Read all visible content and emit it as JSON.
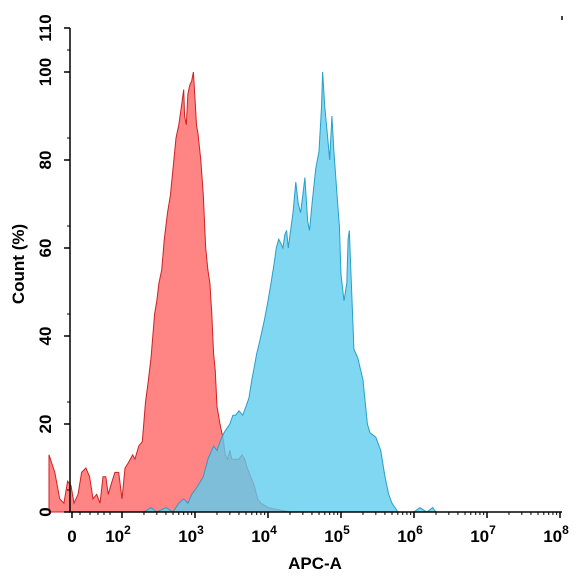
{
  "chart_data": {
    "type": "area",
    "title": "",
    "xlabel": "APC-A",
    "ylabel": "Count (%)",
    "x_scale": "log",
    "x_ticks": [
      {
        "value": 0,
        "base": "0",
        "exp": ""
      },
      {
        "value": 100,
        "base": "10",
        "exp": "2"
      },
      {
        "value": 1000,
        "base": "10",
        "exp": "3"
      },
      {
        "value": 10000,
        "base": "10",
        "exp": "4"
      },
      {
        "value": 100000,
        "base": "10",
        "exp": "5"
      },
      {
        "value": 1000000,
        "base": "10",
        "exp": "6"
      },
      {
        "value": 10000000,
        "base": "10",
        "exp": "7"
      },
      {
        "value": 100000000,
        "base": "10",
        "exp": "8"
      }
    ],
    "y_ticks": [
      "0",
      "20",
      "40",
      "60",
      "80",
      "100",
      "110"
    ],
    "ylim": [
      0,
      110
    ],
    "grid": false,
    "legend": "none",
    "series": [
      {
        "color": "#ff6f6f",
        "stroke": "#cc2222",
        "opacity": 0.85,
        "points": [
          [
            10,
            13
          ],
          [
            12,
            9
          ],
          [
            14,
            3
          ],
          [
            16,
            2
          ],
          [
            18,
            7
          ],
          [
            20,
            6
          ],
          [
            22,
            2
          ],
          [
            25,
            4
          ],
          [
            28,
            9
          ],
          [
            32,
            10
          ],
          [
            36,
            8
          ],
          [
            40,
            3
          ],
          [
            45,
            4
          ],
          [
            50,
            2
          ],
          [
            55,
            8
          ],
          [
            60,
            8
          ],
          [
            65,
            4
          ],
          [
            70,
            6
          ],
          [
            80,
            9
          ],
          [
            90,
            9
          ],
          [
            100,
            3
          ],
          [
            110,
            10
          ],
          [
            120,
            11
          ],
          [
            130,
            12
          ],
          [
            140,
            13
          ],
          [
            150,
            12
          ],
          [
            170,
            15
          ],
          [
            190,
            16
          ],
          [
            210,
            25
          ],
          [
            230,
            30
          ],
          [
            250,
            35
          ],
          [
            280,
            45
          ],
          [
            300,
            48
          ],
          [
            320,
            52
          ],
          [
            350,
            55
          ],
          [
            380,
            62
          ],
          [
            420,
            68
          ],
          [
            460,
            72
          ],
          [
            500,
            78
          ],
          [
            550,
            85
          ],
          [
            600,
            88
          ],
          [
            650,
            92
          ],
          [
            700,
            96
          ],
          [
            720,
            90
          ],
          [
            760,
            88
          ],
          [
            800,
            95
          ],
          [
            850,
            97
          ],
          [
            900,
            98
          ],
          [
            950,
            100
          ],
          [
            1000,
            94
          ],
          [
            1050,
            88
          ],
          [
            1100,
            86
          ],
          [
            1200,
            80
          ],
          [
            1300,
            72
          ],
          [
            1400,
            60
          ],
          [
            1500,
            55
          ],
          [
            1600,
            52
          ],
          [
            1700,
            45
          ],
          [
            1800,
            36
          ],
          [
            1900,
            32
          ],
          [
            2000,
            24
          ],
          [
            2200,
            20
          ],
          [
            2400,
            17
          ],
          [
            2600,
            13
          ],
          [
            2800,
            12
          ],
          [
            3000,
            14
          ],
          [
            3200,
            12
          ],
          [
            3600,
            12
          ],
          [
            4000,
            12
          ],
          [
            4400,
            13
          ],
          [
            4800,
            12
          ],
          [
            5200,
            10
          ],
          [
            5800,
            8
          ],
          [
            6500,
            6
          ],
          [
            7200,
            3
          ],
          [
            8000,
            2
          ],
          [
            10000,
            1
          ],
          [
            20000,
            0
          ]
        ]
      },
      {
        "color": "#5fcdef",
        "stroke": "#2a9ec7",
        "opacity": 0.8,
        "points": [
          [
            200,
            0
          ],
          [
            250,
            1
          ],
          [
            300,
            0
          ],
          [
            400,
            1
          ],
          [
            500,
            0
          ],
          [
            600,
            2
          ],
          [
            700,
            3
          ],
          [
            800,
            2
          ],
          [
            900,
            4
          ],
          [
            1000,
            5
          ],
          [
            1100,
            6
          ],
          [
            1300,
            8
          ],
          [
            1500,
            12
          ],
          [
            1800,
            15
          ],
          [
            2000,
            14
          ],
          [
            2200,
            16
          ],
          [
            2500,
            18
          ],
          [
            3000,
            20
          ],
          [
            3300,
            22
          ],
          [
            3600,
            22
          ],
          [
            4000,
            23
          ],
          [
            4500,
            22
          ],
          [
            5000,
            24
          ],
          [
            5500,
            26
          ],
          [
            6000,
            30
          ],
          [
            6500,
            33
          ],
          [
            7000,
            36
          ],
          [
            7500,
            38
          ],
          [
            8000,
            40
          ],
          [
            9000,
            44
          ],
          [
            10000,
            48
          ],
          [
            11000,
            52
          ],
          [
            12000,
            56
          ],
          [
            13000,
            60
          ],
          [
            14000,
            62
          ],
          [
            15000,
            61
          ],
          [
            16000,
            60
          ],
          [
            17000,
            63
          ],
          [
            18000,
            64
          ],
          [
            19000,
            60
          ],
          [
            20000,
            63
          ],
          [
            22000,
            68
          ],
          [
            24000,
            75
          ],
          [
            26000,
            70
          ],
          [
            28000,
            68
          ],
          [
            30000,
            72
          ],
          [
            32000,
            76
          ],
          [
            35000,
            66
          ],
          [
            37000,
            64
          ],
          [
            40000,
            70
          ],
          [
            45000,
            78
          ],
          [
            50000,
            82
          ],
          [
            54000,
            92
          ],
          [
            56000,
            100
          ],
          [
            60000,
            92
          ],
          [
            65000,
            86
          ],
          [
            70000,
            80
          ],
          [
            75000,
            90
          ],
          [
            80000,
            82
          ],
          [
            85000,
            76
          ],
          [
            90000,
            70
          ],
          [
            95000,
            65
          ],
          [
            100000,
            54
          ],
          [
            110000,
            48
          ],
          [
            120000,
            52
          ],
          [
            125000,
            62
          ],
          [
            130000,
            64
          ],
          [
            140000,
            50
          ],
          [
            150000,
            37
          ],
          [
            170000,
            35
          ],
          [
            200000,
            30
          ],
          [
            230000,
            20
          ],
          [
            250000,
            18
          ],
          [
            300000,
            17
          ],
          [
            350000,
            14
          ],
          [
            400000,
            8
          ],
          [
            450000,
            4
          ],
          [
            500000,
            2
          ],
          [
            550000,
            1
          ],
          [
            600000,
            0
          ],
          [
            1000000,
            0
          ],
          [
            1200000,
            1
          ],
          [
            1500000,
            0
          ],
          [
            1800000,
            1
          ],
          [
            2000000,
            0
          ]
        ]
      }
    ]
  }
}
